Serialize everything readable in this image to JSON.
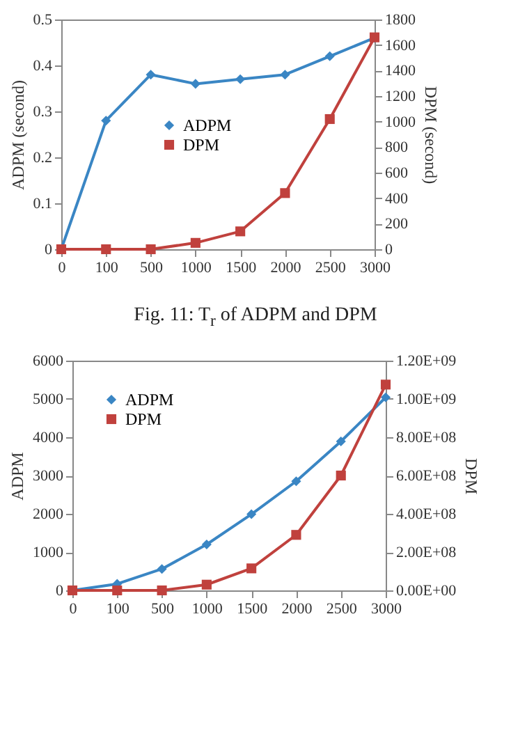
{
  "chart_data": [
    {
      "type": "line",
      "annotations": [
        "Fig. 11: T$_{r}$ of ADPM and DPM"
      ],
      "xlabel": null,
      "ylabel": "ADPM (second)",
      "y2label": "DPM (second)",
      "categories": [
        "0",
        "100",
        "500",
        "1000",
        "1500",
        "2000",
        "2500",
        "3000"
      ],
      "series": [
        {
          "name": "ADPM",
          "color": "#3a86c4",
          "marker": "diamond",
          "values": [
            0,
            0.28,
            0.38,
            0.36,
            0.37,
            0.38,
            0.42,
            0.46
          ]
        },
        {
          "name": "DPM",
          "color": "#c0413d",
          "marker": "square",
          "axis": "y2",
          "values": [
            0,
            0,
            0,
            50,
            140,
            440,
            1020,
            1660
          ]
        }
      ],
      "ylim": [
        0,
        0.5
      ],
      "yticks": [
        0,
        0.1,
        0.2,
        0.3,
        0.4,
        0.5
      ],
      "y2lim": [
        0,
        1800
      ],
      "y2ticks": [
        0,
        200,
        400,
        600,
        800,
        1000,
        1200,
        1400,
        1600,
        1800
      ],
      "grid": false,
      "legend": "center"
    },
    {
      "type": "line",
      "ylabel": "ADPM",
      "y2label": "DPM",
      "categories": [
        "0",
        "100",
        "500",
        "1000",
        "1500",
        "2000",
        "2500",
        "3000"
      ],
      "series": [
        {
          "name": "ADPM",
          "color": "#3a86c4",
          "marker": "diamond",
          "values": [
            0,
            170,
            560,
            1200,
            1990,
            2850,
            3890,
            5040
          ]
        },
        {
          "name": "DPM",
          "color": "#c0413d",
          "marker": "square",
          "axis": "y2",
          "values": [
            0,
            0,
            0,
            30000000,
            115000000,
            290000000,
            600000000,
            1075000000
          ]
        }
      ],
      "ylim": [
        0,
        6000
      ],
      "yticks": [
        0,
        1000,
        2000,
        3000,
        4000,
        5000,
        6000
      ],
      "y2lim": [
        0,
        1200000000
      ],
      "y2ticks": [
        {
          "value": 0,
          "label": "0.00E+00"
        },
        {
          "value": 200000000,
          "label": "2.00E+08"
        },
        {
          "value": 400000000,
          "label": "4.00E+08"
        },
        {
          "value": 600000000,
          "label": "6.00E+08"
        },
        {
          "value": 800000000,
          "label": "8.00E+08"
        },
        {
          "value": 1000000000,
          "label": "1.00E+09"
        },
        {
          "value": 1200000000,
          "label": "1.20E+09"
        }
      ],
      "grid": false,
      "legend": "top left"
    }
  ]
}
